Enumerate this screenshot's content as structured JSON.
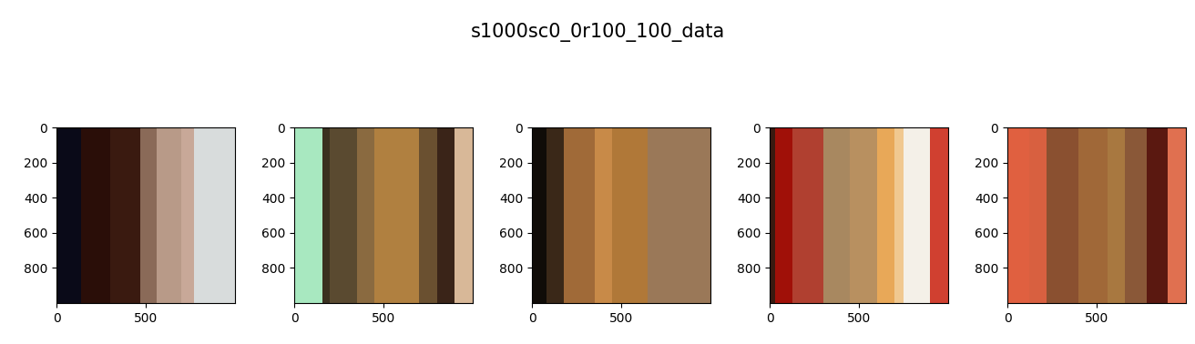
{
  "chart_data": {
    "type": "image",
    "title": "s1000sc0_0r100_100_data",
    "panels": [
      {
        "edges": [
          0,
          140,
          300,
          470,
          560,
          700,
          770,
          1000
        ],
        "colors": [
          "#0a0a18",
          "#2a0e08",
          "#3a1a10",
          "#8a6a58",
          "#b89a88",
          "#c8a898",
          "#d8dcdc"
        ]
      },
      {
        "edges": [
          0,
          160,
          200,
          350,
          450,
          700,
          800,
          900,
          1000
        ],
        "colors": [
          "#a8e8c0",
          "#3a3020",
          "#5a4a30",
          "#8a6a40",
          "#b08040",
          "#6a5030",
          "#3a2418",
          "#d8b898"
        ]
      },
      {
        "edges": [
          0,
          80,
          180,
          350,
          450,
          650,
          1000
        ],
        "colors": [
          "#100c08",
          "#3a2818",
          "#a06a38",
          "#c88a48",
          "#b07838",
          "#9a7858"
        ]
      },
      {
        "edges": [
          0,
          30,
          130,
          300,
          450,
          600,
          700,
          750,
          900,
          1000
        ],
        "colors": [
          "#3a1a10",
          "#a01008",
          "#b04030",
          "#a88860",
          "#b89060",
          "#e8a858",
          "#f0c890",
          "#f4f0e8",
          "#d04030"
        ]
      },
      {
        "edges": [
          0,
          120,
          220,
          400,
          560,
          660,
          780,
          900,
          1000
        ],
        "colors": [
          "#e06040",
          "#d86040",
          "#8a5030",
          "#a06838",
          "#a87840",
          "#8a5838",
          "#5a1810",
          "#e07050"
        ]
      }
    ],
    "xlim": [
      -0.5,
      999.5
    ],
    "ylim": [
      999.5,
      -0.5
    ],
    "xticks": [
      0,
      500
    ],
    "yticks": [
      0,
      200,
      400,
      600,
      800
    ]
  }
}
